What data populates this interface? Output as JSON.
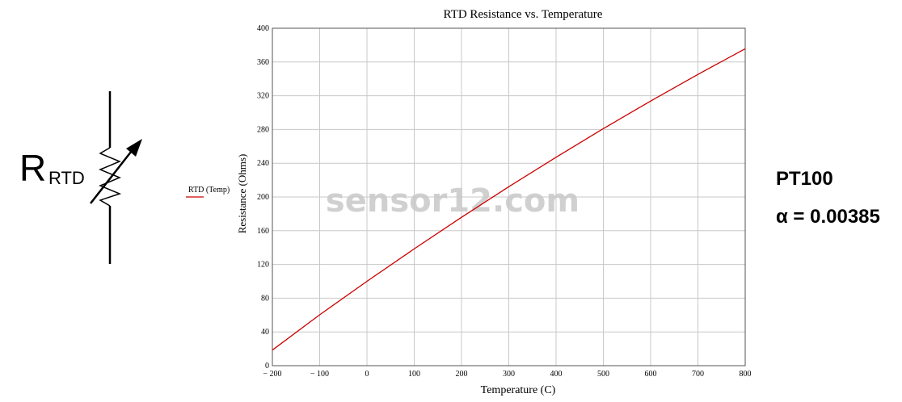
{
  "chart_data": {
    "type": "line",
    "title": "RTD Resistance vs. Temperature",
    "x_label": "Temperature (C)",
    "y_label": "Resistance (Ohms)",
    "x": [
      -200,
      -100,
      0,
      100,
      200,
      300,
      400,
      500,
      600,
      700,
      800
    ],
    "series": [
      {
        "name": "RTD (Temp)",
        "color": "#cc0000",
        "values": [
          18.5,
          60.3,
          100,
          138.5,
          175.9,
          212.1,
          247.1,
          281,
          313.7,
          345.3,
          375.7
        ]
      }
    ],
    "xlim": [
      -200,
      800
    ],
    "xticks": [
      {
        "value": -200,
        "label": "− 200"
      },
      {
        "value": -100,
        "label": "− 100"
      },
      0,
      100,
      200,
      300,
      400,
      500,
      600,
      700,
      800
    ],
    "ylim": [
      0,
      400
    ],
    "yticks": [
      0,
      40,
      80,
      120,
      160,
      200,
      240,
      280,
      320,
      360,
      400
    ],
    "grid": true,
    "legend": "left"
  },
  "symbol": {
    "letter": "R",
    "subscript": "RTD"
  },
  "specs": [
    "PT100",
    "α = 0.00385"
  ],
  "watermark": "sensor12.com"
}
